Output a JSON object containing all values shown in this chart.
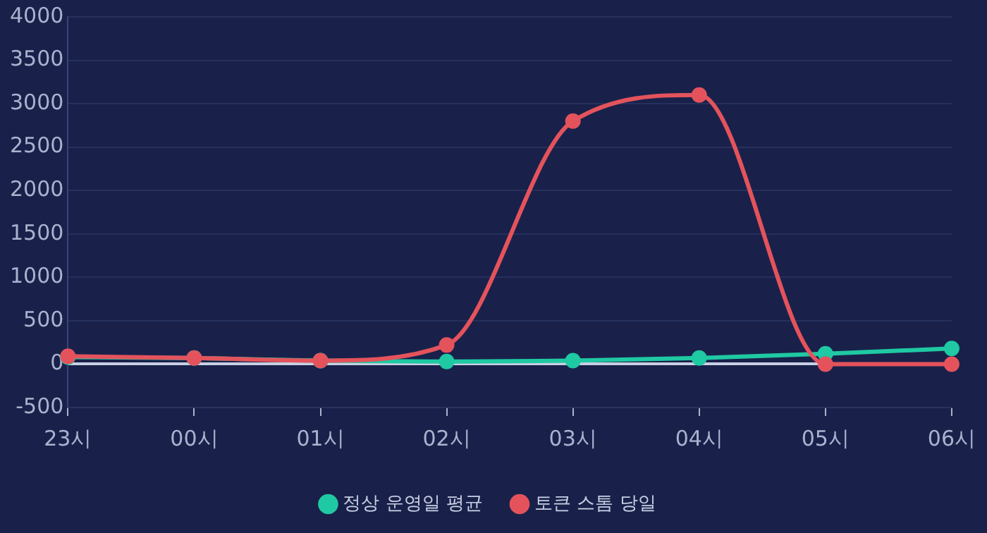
{
  "chart_data": {
    "type": "line",
    "categories": [
      "23시",
      "00시",
      "01시",
      "02시",
      "03시",
      "04시",
      "05시",
      "06시"
    ],
    "series": [
      {
        "name": "정상 운영일 평균",
        "color": "#1fc9a3",
        "values": [
          80,
          70,
          40,
          30,
          40,
          70,
          120,
          180
        ]
      },
      {
        "name": "토큰 스톰 당일",
        "color": "#e4535c",
        "values": [
          90,
          70,
          40,
          220,
          2800,
          3100,
          0,
          0
        ]
      }
    ],
    "ylim": [
      -500,
      4000
    ],
    "yticks": [
      -500,
      0,
      500,
      1000,
      1500,
      2000,
      2500,
      3000,
      3500,
      4000
    ],
    "grid": "y",
    "legend": "bottom",
    "marker": "circle",
    "line_style": "solid"
  }
}
